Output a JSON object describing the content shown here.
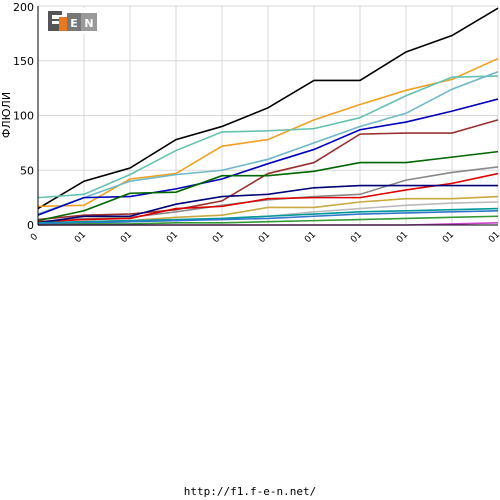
{
  "chart_data": {
    "type": "line",
    "ylabel": "ФЛЮЛИ",
    "ylim": [
      0,
      200
    ],
    "yticks": [
      0,
      50,
      100,
      150,
      200
    ],
    "x_tick_labels": [
      "0",
      "01",
      "01",
      "01",
      "01",
      "01",
      "01",
      "01",
      "01",
      "01",
      "01"
    ],
    "x": [
      0,
      1,
      2,
      3,
      4,
      5,
      6,
      7,
      8,
      9,
      10
    ],
    "series": [
      {
        "color": "#000000",
        "values": [
          15,
          40,
          52,
          78,
          90,
          107,
          132,
          132,
          158,
          173,
          198
        ]
      },
      {
        "color": "#f0a020",
        "values": [
          17,
          18,
          42,
          47,
          72,
          78,
          96,
          110,
          123,
          133,
          152
        ]
      },
      {
        "color": "#66c2b0",
        "values": [
          25,
          28,
          46,
          68,
          85,
          86,
          88,
          98,
          118,
          135,
          136
        ]
      },
      {
        "color": "#70b8c8",
        "values": [
          10,
          25,
          40,
          46,
          50,
          60,
          75,
          90,
          102,
          124,
          140
        ]
      },
      {
        "color": "#0000bb",
        "values": [
          9,
          25,
          26,
          33,
          42,
          56,
          69,
          87,
          94,
          104,
          115
        ]
      },
      {
        "color": "#9a3030",
        "values": [
          5,
          9,
          10,
          14,
          22,
          47,
          57,
          83,
          84,
          84,
          96
        ]
      },
      {
        "color": "#006600",
        "values": [
          4,
          13,
          29,
          30,
          45,
          45,
          49,
          57,
          57,
          62,
          67
        ]
      },
      {
        "color": "#888888",
        "values": [
          3,
          6,
          7,
          12,
          18,
          23,
          26,
          28,
          41,
          48,
          53
        ]
      },
      {
        "color": "#dd0000",
        "values": [
          3,
          5,
          6,
          15,
          17,
          24,
          25,
          25,
          32,
          38,
          47
        ]
      },
      {
        "color": "#000077",
        "values": [
          2,
          8,
          8,
          19,
          26,
          28,
          34,
          36,
          36,
          36,
          36
        ]
      },
      {
        "color": "#c8a840",
        "values": [
          1,
          3,
          4,
          7,
          9,
          16,
          16,
          21,
          24,
          24,
          26
        ]
      },
      {
        "color": "#bbbbbb",
        "values": [
          1,
          2,
          3,
          4,
          6,
          8,
          12,
          15,
          18,
          20,
          21
        ]
      },
      {
        "color": "#009999",
        "values": [
          2,
          3,
          4,
          5,
          6,
          8,
          10,
          12,
          13,
          14,
          15
        ]
      },
      {
        "color": "#3377cc",
        "values": [
          1,
          2,
          3,
          4,
          5,
          6,
          8,
          10,
          11,
          12,
          13
        ]
      },
      {
        "color": "#339933",
        "values": [
          0,
          1,
          1,
          2,
          2,
          3,
          4,
          5,
          6,
          7,
          8
        ]
      },
      {
        "color": "#cc44cc",
        "values": [
          0,
          0,
          0,
          0,
          0,
          0,
          0,
          0,
          0,
          1,
          2
        ]
      }
    ]
  },
  "logo_text": "F1EN",
  "footer": {
    "url": "http://f1.f-e-n.net/"
  }
}
